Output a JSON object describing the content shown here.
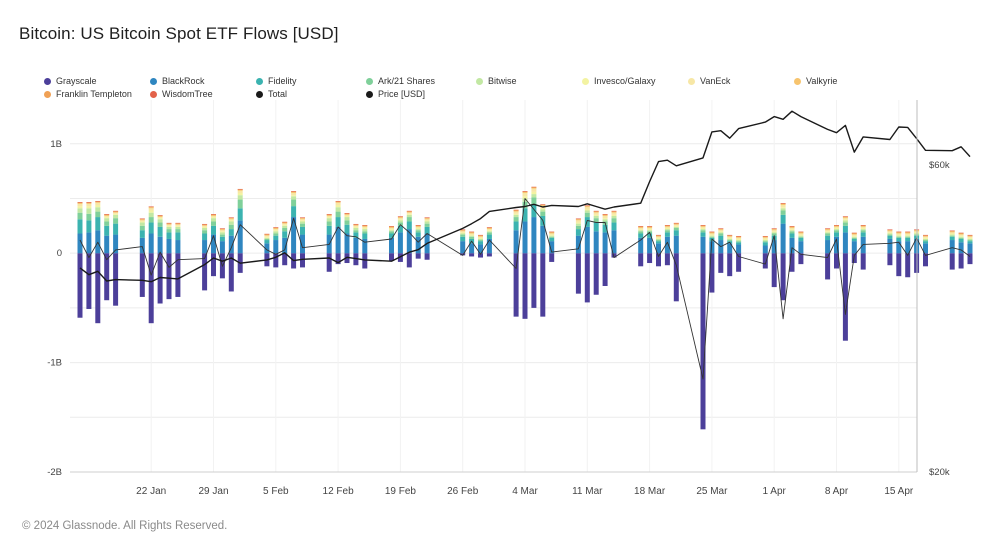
{
  "title": "Bitcoin: US Bitcoin Spot ETF Flows [USD]",
  "copyright": "© 2024 Glassnode. All Rights Reserved.",
  "legend": [
    {
      "name": "Grayscale",
      "color": "#4c3f9a"
    },
    {
      "name": "BlackRock",
      "color": "#2f86c0"
    },
    {
      "name": "Fidelity",
      "color": "#3bb3b0"
    },
    {
      "name": "Ark/21 Shares",
      "color": "#7fd09a"
    },
    {
      "name": "Bitwise",
      "color": "#c2e8a3"
    },
    {
      "name": "Invesco/Galaxy",
      "color": "#f3f3a2"
    },
    {
      "name": "VanEck",
      "color": "#f7e7a6"
    },
    {
      "name": "Valkyrie",
      "color": "#f7c46e"
    },
    {
      "name": "Franklin Templeton",
      "color": "#f0a155"
    },
    {
      "name": "WisdomTree",
      "color": "#e3624a"
    },
    {
      "name": "Total",
      "color": "#1a1a1a"
    },
    {
      "name": "Price [USD]",
      "color": "#1a1a1a"
    }
  ],
  "chart_data": {
    "type": "bar",
    "stacked": true,
    "grid": true,
    "legend_position": "top",
    "x_tick_labels": [
      "22 Jan",
      "29 Jan",
      "5 Feb",
      "12 Feb",
      "19 Feb",
      "26 Feb",
      "4 Mar",
      "11 Mar",
      "18 Mar",
      "25 Mar",
      "1 Apr",
      "8 Apr",
      "15 Apr"
    ],
    "y_tick_labels": [
      "1B",
      "0",
      "-1B",
      "-2B"
    ],
    "ylim": [
      -2000000000,
      1400000000
    ],
    "y2_tick_labels": [
      "$60k",
      "$20k"
    ],
    "y2_scale": "log",
    "y2lim": [
      20000,
      73000
    ],
    "day_ticks": [
      8,
      15,
      22,
      29,
      36,
      43,
      50,
      57,
      64,
      71,
      78,
      85,
      92
    ],
    "days": [
      0,
      1,
      2,
      3,
      4,
      7,
      8,
      9,
      10,
      11,
      14,
      15,
      16,
      17,
      18,
      21,
      22,
      23,
      24,
      25,
      28,
      29,
      30,
      31,
      32,
      35,
      36,
      37,
      38,
      39,
      43,
      44,
      45,
      46,
      49,
      50,
      51,
      52,
      53,
      56,
      57,
      58,
      59,
      60,
      63,
      64,
      65,
      66,
      67,
      70,
      71,
      72,
      73,
      74,
      77,
      78,
      79,
      80,
      81,
      84,
      85,
      86,
      87,
      88,
      91,
      92,
      93,
      94,
      95,
      98,
      99,
      100
    ],
    "series": [
      {
        "name": "Grayscale",
        "values": [
          -590,
          -510,
          -640,
          -430,
          -480,
          -400,
          -640,
          -460,
          -420,
          -400,
          -340,
          -210,
          -230,
          -350,
          -180,
          -120,
          -130,
          -110,
          -140,
          -130,
          -170,
          -100,
          -90,
          -110,
          -140,
          -70,
          -80,
          -130,
          -50,
          -60,
          -20,
          -30,
          -40,
          -30,
          -580,
          -600,
          -500,
          -580,
          -80,
          -370,
          -450,
          -380,
          -300,
          -40,
          -120,
          -90,
          -120,
          -110,
          -440,
          -1610,
          -360,
          -180,
          -210,
          -170,
          -140,
          -310,
          -430,
          -170,
          -100,
          -240,
          -140,
          -800,
          -90,
          -150,
          -110,
          -210,
          -220,
          -180,
          -120,
          -150,
          -140,
          -100
        ]
      },
      {
        "name": "BlackRock",
        "values": [
          180,
          190,
          210,
          160,
          170,
          140,
          180,
          150,
          130,
          120,
          120,
          170,
          110,
          160,
          300,
          90,
          120,
          140,
          330,
          170,
          170,
          240,
          180,
          140,
          130,
          140,
          190,
          220,
          150,
          180,
          110,
          90,
          80,
          130,
          210,
          290,
          330,
          250,
          110,
          160,
          240,
          200,
          190,
          210,
          140,
          140,
          90,
          150,
          160,
          150,
          110,
          120,
          90,
          80,
          70,
          120,
          270,
          140,
          110,
          120,
          150,
          190,
          110,
          150,
          130,
          110,
          110,
          130,
          90,
          120,
          100,
          90
        ]
      },
      {
        "name": "Fidelity",
        "values": [
          130,
          110,
          120,
          90,
          100,
          70,
          100,
          90,
          60,
          70,
          60,
          80,
          40,
          60,
          110,
          30,
          40,
          60,
          100,
          70,
          80,
          90,
          80,
          50,
          50,
          40,
          60,
          70,
          40,
          60,
          40,
          40,
          30,
          40,
          80,
          120,
          120,
          90,
          30,
          60,
          90,
          80,
          70,
          70,
          40,
          40,
          20,
          40,
          50,
          40,
          30,
          40,
          20,
          20,
          30,
          40,
          80,
          40,
          30,
          40,
          40,
          60,
          20,
          40,
          30,
          30,
          30,
          30,
          20,
          30,
          30,
          20
        ]
      },
      {
        "name": "Ark/21 Shares",
        "values": [
          60,
          60,
          50,
          40,
          50,
          40,
          50,
          40,
          30,
          30,
          30,
          40,
          20,
          40,
          80,
          10,
          20,
          30,
          60,
          30,
          40,
          50,
          40,
          20,
          20,
          20,
          30,
          40,
          20,
          30,
          20,
          20,
          10,
          20,
          40,
          60,
          60,
          40,
          10,
          30,
          40,
          40,
          30,
          40,
          20,
          20,
          10,
          20,
          20,
          20,
          10,
          20,
          10,
          10,
          10,
          20,
          40,
          20,
          10,
          20,
          20,
          30,
          10,
          20,
          10,
          10,
          10,
          10,
          10,
          10,
          10,
          10
        ]
      },
      {
        "name": "Bitwise",
        "values": [
          40,
          50,
          40,
          30,
          30,
          30,
          40,
          30,
          20,
          20,
          20,
          30,
          20,
          30,
          40,
          10,
          20,
          20,
          30,
          20,
          30,
          40,
          30,
          20,
          20,
          10,
          20,
          20,
          10,
          20,
          10,
          10,
          10,
          10,
          20,
          30,
          30,
          20,
          10,
          20,
          20,
          20,
          20,
          20,
          10,
          10,
          10,
          10,
          10,
          10,
          10,
          10,
          10,
          10,
          10,
          10,
          20,
          10,
          10,
          10,
          10,
          20,
          10,
          10,
          10,
          10,
          10,
          10,
          10,
          10,
          10,
          10
        ]
      },
      {
        "name": "Invesco/Galaxy",
        "values": [
          20,
          20,
          20,
          10,
          10,
          10,
          20,
          10,
          10,
          10,
          10,
          10,
          10,
          10,
          20,
          10,
          10,
          10,
          10,
          10,
          10,
          20,
          10,
          10,
          10,
          10,
          10,
          10,
          10,
          10,
          10,
          10,
          10,
          10,
          10,
          20,
          20,
          10,
          10,
          10,
          10,
          10,
          10,
          10,
          10,
          10,
          10,
          10,
          10,
          10,
          10,
          10,
          10,
          10,
          10,
          10,
          10,
          10,
          10,
          10,
          10,
          10,
          10,
          10,
          10,
          10,
          10,
          10,
          10,
          10,
          10,
          10
        ]
      },
      {
        "name": "VanEck",
        "values": [
          20,
          20,
          20,
          10,
          10,
          10,
          20,
          10,
          10,
          10,
          10,
          10,
          10,
          10,
          20,
          10,
          10,
          10,
          20,
          10,
          10,
          20,
          10,
          10,
          10,
          10,
          10,
          10,
          10,
          10,
          10,
          10,
          10,
          10,
          20,
          30,
          30,
          20,
          10,
          20,
          20,
          20,
          20,
          20,
          10,
          10,
          10,
          10,
          10,
          10,
          10,
          10,
          10,
          10,
          10,
          10,
          20,
          10,
          10,
          10,
          10,
          10,
          10,
          10,
          10,
          10,
          10,
          10,
          10,
          10,
          10,
          10
        ]
      },
      {
        "name": "Valkyrie",
        "values": [
          10,
          10,
          10,
          10,
          10,
          10,
          10,
          10,
          10,
          10,
          10,
          10,
          10,
          10,
          10,
          10,
          10,
          10,
          10,
          10,
          10,
          10,
          10,
          10,
          10,
          10,
          10,
          10,
          10,
          10,
          10,
          10,
          10,
          10,
          10,
          10,
          10,
          10,
          10,
          10,
          10,
          10,
          10,
          10,
          10,
          10,
          10,
          10,
          10,
          10,
          10,
          10,
          10,
          10,
          10,
          10,
          10,
          10,
          10,
          10,
          10,
          10,
          10,
          10,
          10,
          10,
          10,
          10,
          10,
          10,
          10,
          10
        ]
      },
      {
        "name": "Franklin Templeton",
        "values": [
          5,
          5,
          5,
          5,
          5,
          5,
          5,
          5,
          5,
          5,
          5,
          5,
          5,
          5,
          5,
          5,
          5,
          5,
          5,
          5,
          5,
          5,
          5,
          5,
          5,
          5,
          5,
          5,
          5,
          5,
          5,
          5,
          5,
          5,
          5,
          5,
          5,
          5,
          5,
          5,
          5,
          5,
          5,
          5,
          5,
          5,
          5,
          5,
          5,
          5,
          5,
          5,
          5,
          5,
          5,
          5,
          5,
          5,
          5,
          5,
          5,
          5,
          5,
          5,
          5,
          5,
          5,
          5,
          5,
          5,
          5,
          5
        ]
      },
      {
        "name": "WisdomTree",
        "values": [
          2,
          2,
          2,
          2,
          2,
          2,
          2,
          2,
          2,
          2,
          2,
          2,
          2,
          2,
          2,
          2,
          2,
          2,
          2,
          2,
          2,
          2,
          2,
          2,
          2,
          2,
          2,
          2,
          2,
          2,
          2,
          2,
          2,
          2,
          2,
          2,
          2,
          2,
          2,
          2,
          2,
          2,
          2,
          2,
          2,
          2,
          2,
          2,
          2,
          2,
          2,
          2,
          2,
          2,
          2,
          2,
          2,
          2,
          2,
          2,
          2,
          2,
          2,
          2,
          2,
          2,
          2,
          2,
          2,
          2,
          2,
          2
        ]
      }
    ],
    "total": [
      120,
      -40,
      100,
      -60,
      30,
      60,
      -200,
      10,
      -130,
      -60,
      -50,
      160,
      -120,
      50,
      260,
      30,
      -10,
      30,
      320,
      50,
      80,
      240,
      160,
      150,
      100,
      130,
      260,
      190,
      100,
      180,
      -20,
      110,
      -10,
      120,
      -140,
      500,
      400,
      300,
      10,
      40,
      300,
      280,
      280,
      -40,
      120,
      190,
      -30,
      100,
      -110,
      -1150,
      130,
      60,
      100,
      -30,
      -100,
      160,
      -600,
      50,
      -10,
      -40,
      130,
      -560,
      -20,
      80,
      90,
      100,
      -20,
      140,
      -20,
      50,
      30,
      -30
    ],
    "price": [
      41500,
      40500,
      41000,
      39600,
      39800,
      39700,
      39500,
      40100,
      40000,
      39900,
      42000,
      43000,
      42500,
      43000,
      42200,
      42700,
      43100,
      43800,
      42600,
      42800,
      43000,
      42300,
      43100,
      42900,
      42700,
      42500,
      43200,
      43900,
      44300,
      45300,
      47800,
      48600,
      49500,
      50800,
      51500,
      51700,
      52100,
      51600,
      51900,
      51700,
      52200,
      51700,
      51200,
      51600,
      52300,
      56500,
      60700,
      61000,
      59800,
      61500,
      67500,
      67800,
      66000,
      68300,
      69900,
      71300,
      70600,
      72700,
      71300,
      68100,
      67300,
      69100,
      62800,
      66300,
      65700,
      68700,
      68600,
      65900,
      63200,
      63100,
      64000,
      61800
    ]
  }
}
